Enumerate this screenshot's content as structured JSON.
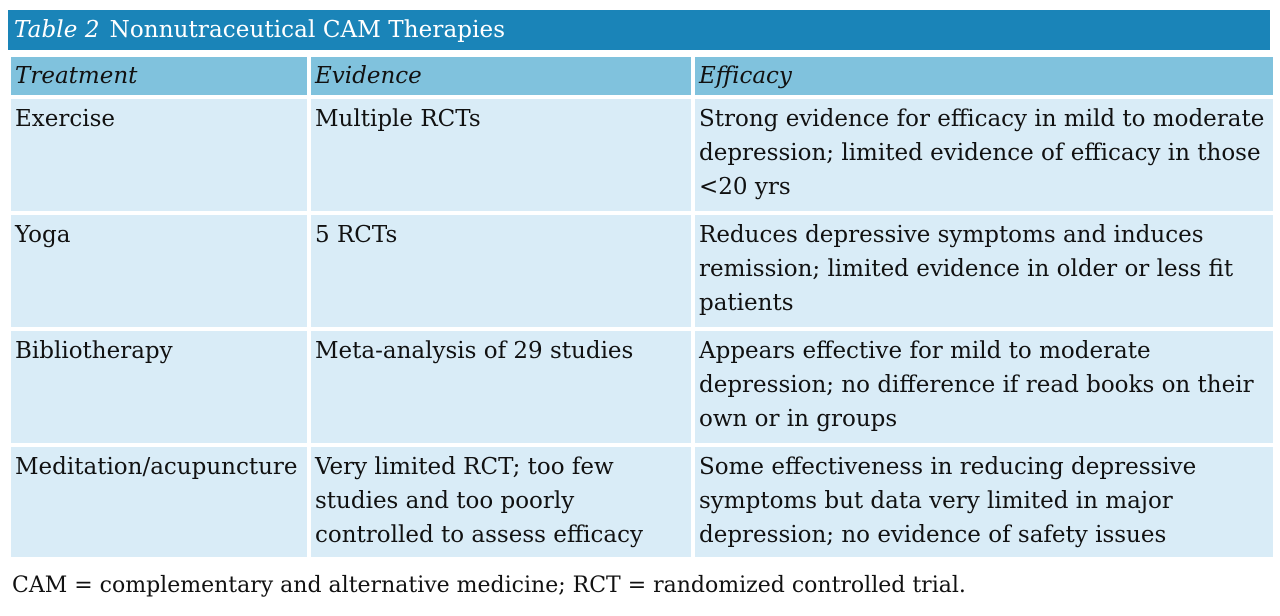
{
  "table": {
    "label": "Table 2",
    "title": "Nonnutraceutical CAM Therapies",
    "headers": [
      "Treatment",
      "Evidence",
      "Efficacy"
    ],
    "rows": [
      {
        "treatment": "Exercise",
        "evidence": "Multiple RCTs",
        "efficacy": "Strong evidence for efficacy in mild to moderate depression; limited evidence of efficacy in those <20 yrs"
      },
      {
        "treatment": "Yoga",
        "evidence": "5 RCTs",
        "efficacy": "Reduces depressive symptoms and induces remission; limited evidence in older or less fit patients"
      },
      {
        "treatment": "Bibliotherapy",
        "evidence": "Meta-analysis of 29 studies",
        "efficacy": "Appears effective for mild to moderate depression; no difference if read books on their own or in groups"
      },
      {
        "treatment": "Meditation/acupuncture",
        "evidence": "Very limited RCT; too few studies and too poorly controlled to assess efficacy",
        "efficacy": "Some effectiveness in reducing depressive symptoms but data very limited in major depression; no evidence of safety issues"
      }
    ],
    "footnote": "CAM = complementary and alternative medicine; RCT = randomized controlled trial."
  },
  "colors": {
    "title_bar": "#1a84b8",
    "header_cell": "#80c2dd",
    "body_cell": "#d9ecf7"
  }
}
